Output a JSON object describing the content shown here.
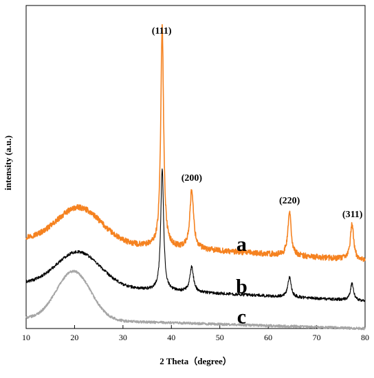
{
  "chart_data": {
    "type": "line",
    "title": "",
    "xlabel": "2 Theta（degree）",
    "ylabel": "intensity (a.u.)",
    "xlim": [
      10,
      80
    ],
    "x_ticks": [
      10,
      20,
      30,
      40,
      50,
      60,
      70,
      80
    ],
    "y_ticks_shown": false,
    "grid": false,
    "legend": "none",
    "series": [
      {
        "name": "a",
        "color": "#f58220",
        "baseline": 0.82,
        "broad_hump": {
          "center": 21.0,
          "height": 0.55,
          "width": 4.5
        },
        "decay": 0.35,
        "noise": 0.09,
        "peaks": [
          {
            "x": 38.1,
            "height": 3.55,
            "width": 0.35
          },
          {
            "x": 44.2,
            "height": 0.95,
            "width": 0.45
          },
          {
            "x": 64.4,
            "height": 0.7,
            "width": 0.4
          },
          {
            "x": 77.3,
            "height": 0.58,
            "width": 0.4
          }
        ]
      },
      {
        "name": "b",
        "color": "#000000",
        "baseline": 0.1,
        "broad_hump": {
          "center": 20.8,
          "height": 0.55,
          "width": 4.5
        },
        "decay": 0.28,
        "noise": 0.05,
        "peaks": [
          {
            "x": 38.1,
            "height": 1.95,
            "width": 0.35
          },
          {
            "x": 44.2,
            "height": 0.4,
            "width": 0.45
          },
          {
            "x": 64.4,
            "height": 0.32,
            "width": 0.4
          },
          {
            "x": 77.3,
            "height": 0.27,
            "width": 0.4
          }
        ]
      },
      {
        "name": "c",
        "color": "#a6a6a6",
        "baseline": -0.46,
        "broad_hump": {
          "center": 19.8,
          "height": 0.78,
          "width": 3.5
        },
        "decay": 0.16,
        "noise": 0.04,
        "peaks": []
      }
    ],
    "peak_labels": [
      {
        "text": "(111)",
        "x": 38.0
      },
      {
        "text": "(200)",
        "x": 44.2
      },
      {
        "text": "(220)",
        "x": 64.4
      },
      {
        "text": "(311)",
        "x": 77.4
      }
    ],
    "curve_labels": [
      {
        "text": "a",
        "series": "a"
      },
      {
        "text": "b",
        "series": "b"
      },
      {
        "text": "c",
        "series": "c"
      }
    ]
  }
}
